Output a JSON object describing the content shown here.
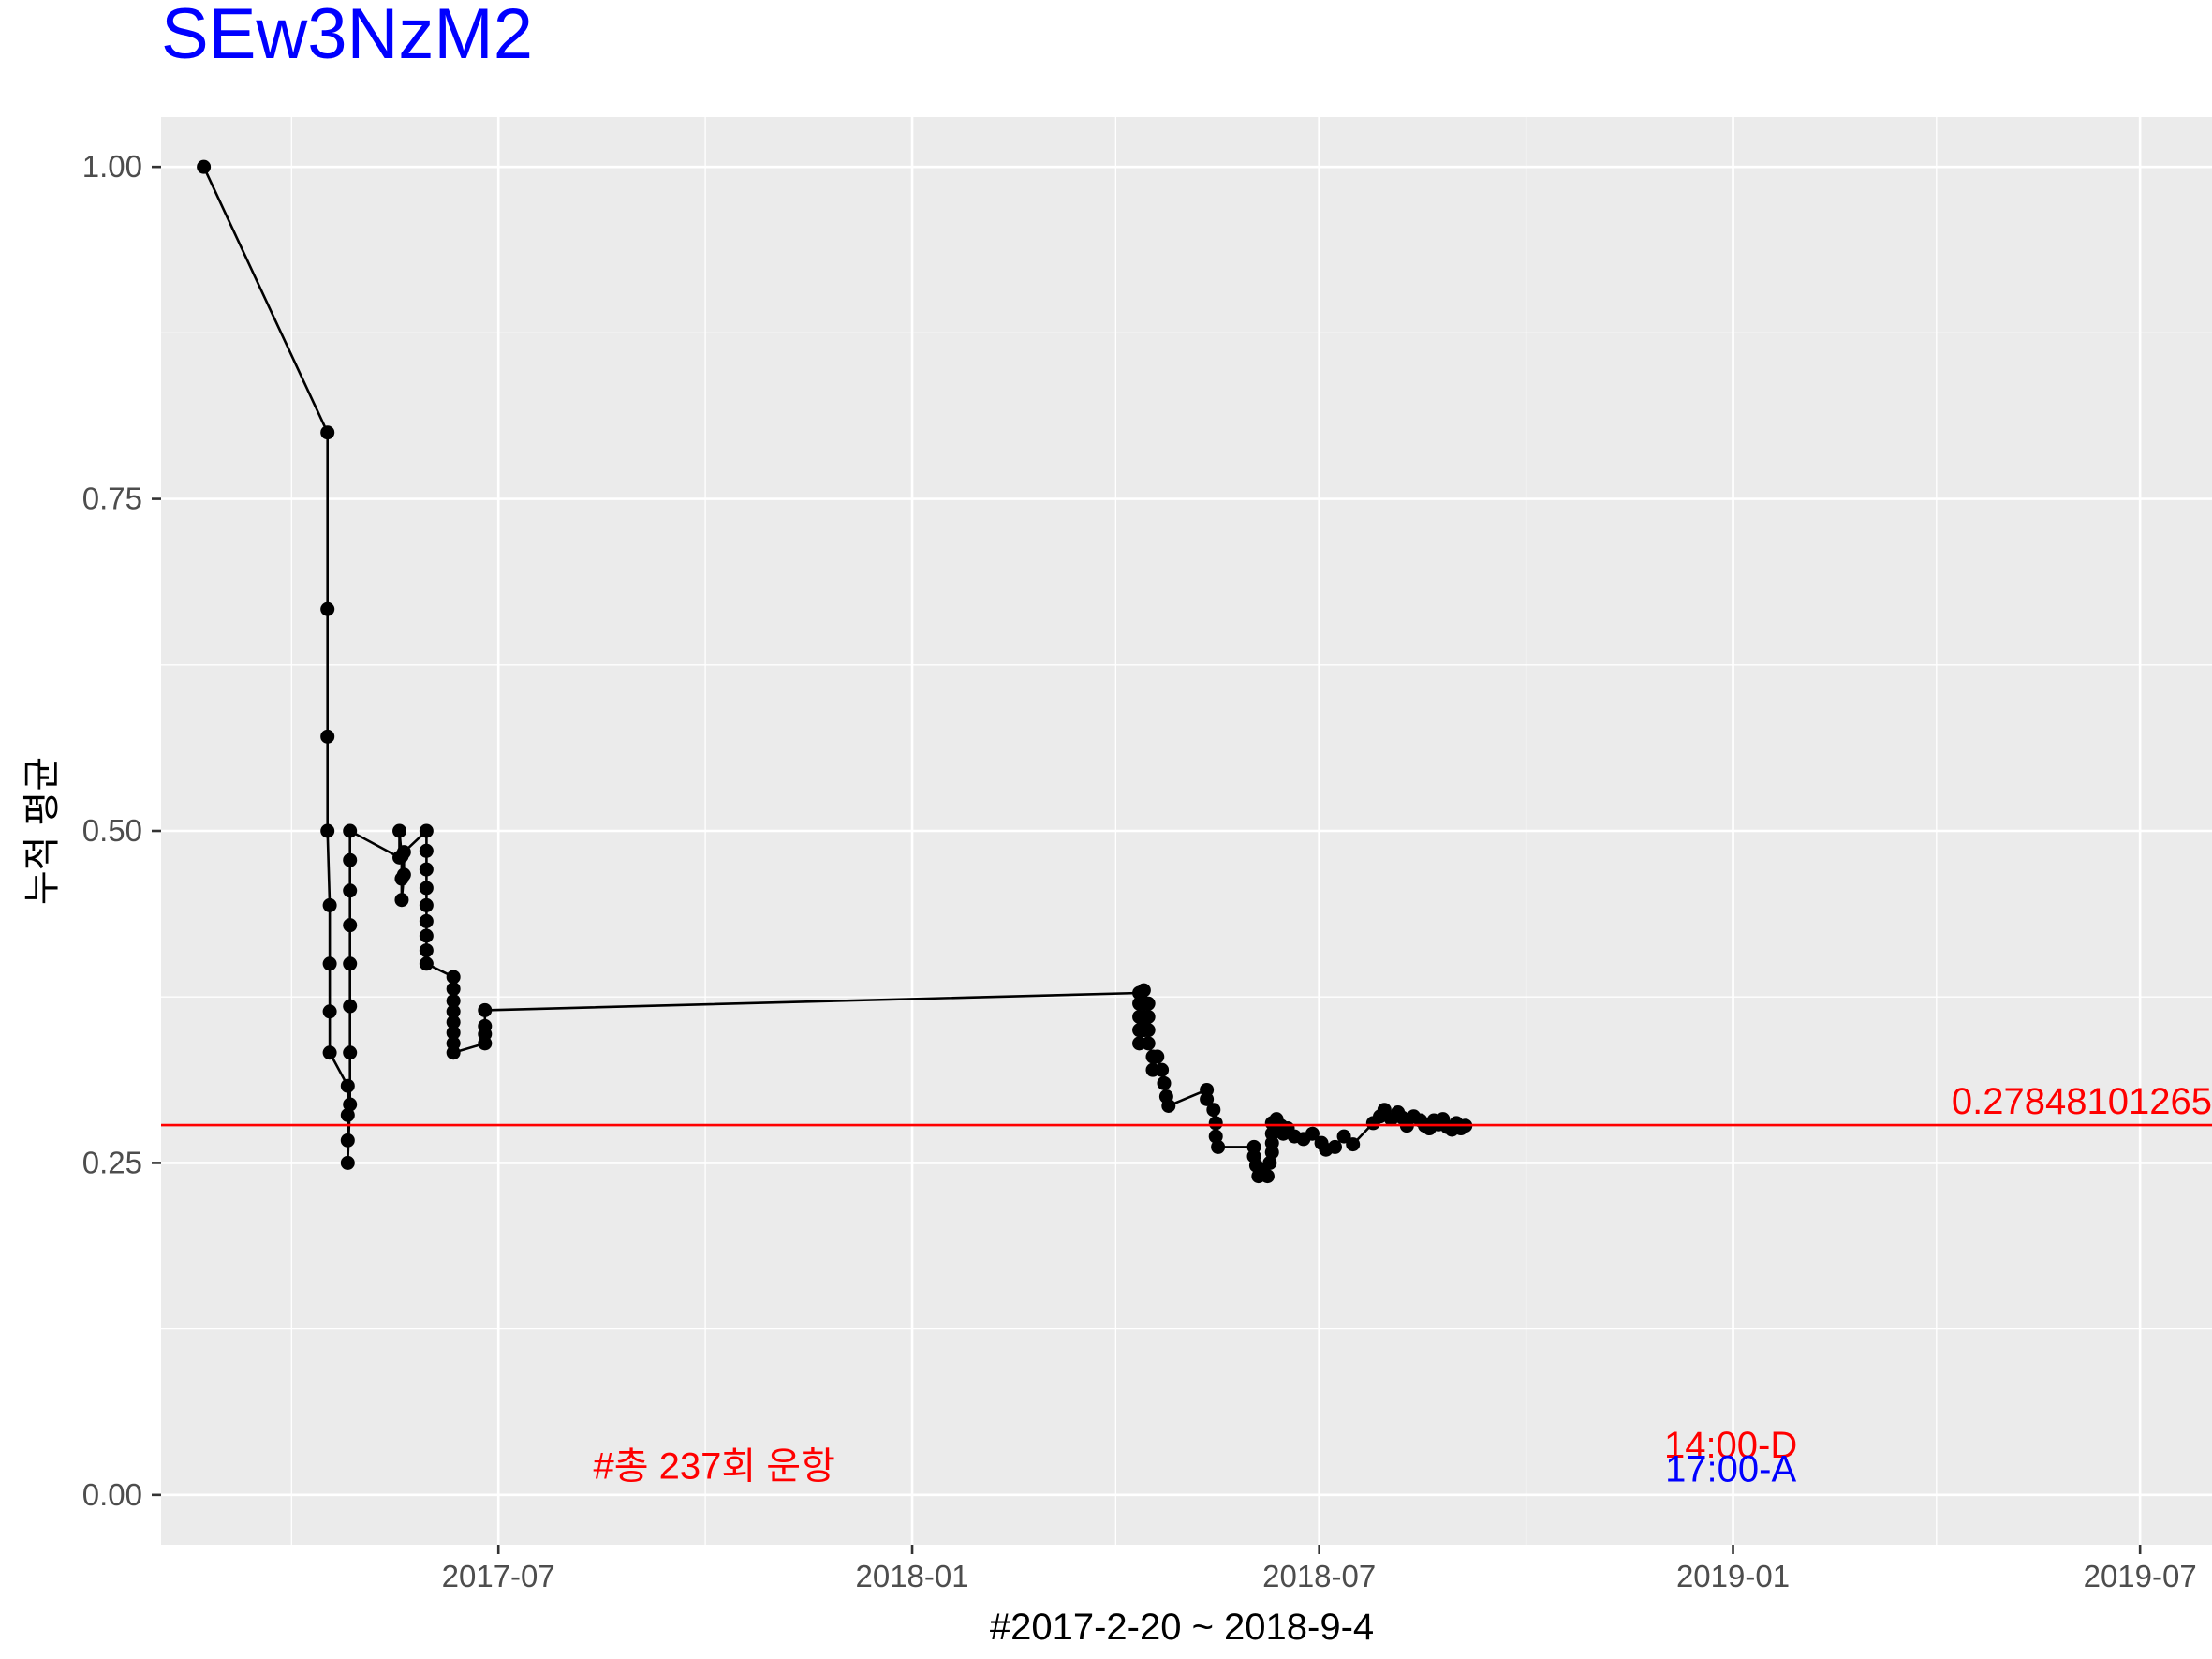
{
  "chart_data": {
    "type": "line",
    "title": "SEw3NzM2",
    "xlabel": "#2017-2-20 ~ 2018-9-4",
    "ylabel": "누적 평균",
    "xlim": [
      "2017-02-01",
      "2019-08-02"
    ],
    "ylim": [
      -0.0375,
      1.0375
    ],
    "grid": true,
    "x_ticks": [
      "2017-07-01",
      "2018-01-01",
      "2018-07-01",
      "2019-01-01",
      "2019-07-01"
    ],
    "x_tick_labels": [
      "2017-07",
      "2018-01",
      "2018-07",
      "2019-01",
      "2019-07"
    ],
    "y_ticks": [
      0,
      0.25,
      0.5,
      0.75,
      1
    ],
    "y_tick_labels": [
      "0.00",
      "0.25",
      "0.50",
      "0.75",
      "1.00"
    ],
    "hline": {
      "y": 0.2784810127,
      "label": "0.27848101265",
      "color": "#ff0000"
    },
    "series": [
      {
        "color": "#000000",
        "points": [
          [
            "2017-02-20",
            1.0
          ],
          [
            "2017-04-16",
            0.8
          ],
          [
            "2017-04-16",
            0.667
          ],
          [
            "2017-04-16",
            0.571
          ],
          [
            "2017-04-16",
            0.5
          ],
          [
            "2017-04-17",
            0.444
          ],
          [
            "2017-04-17",
            0.4
          ],
          [
            "2017-04-17",
            0.364
          ],
          [
            "2017-04-17",
            0.333
          ],
          [
            "2017-04-25",
            0.308
          ],
          [
            "2017-04-25",
            0.286
          ],
          [
            "2017-04-25",
            0.267
          ],
          [
            "2017-04-25",
            0.25
          ],
          [
            "2017-04-26",
            0.294
          ],
          [
            "2017-04-26",
            0.333
          ],
          [
            "2017-04-26",
            0.368
          ],
          [
            "2017-04-26",
            0.4
          ],
          [
            "2017-04-26",
            0.429
          ],
          [
            "2017-04-26",
            0.455
          ],
          [
            "2017-04-26",
            0.478
          ],
          [
            "2017-04-26",
            0.5
          ],
          [
            "2017-05-18",
            0.48
          ],
          [
            "2017-05-18",
            0.5
          ],
          [
            "2017-05-19",
            0.481
          ],
          [
            "2017-05-19",
            0.464
          ],
          [
            "2017-05-19",
            0.448
          ],
          [
            "2017-05-20",
            0.467
          ],
          [
            "2017-05-20",
            0.484
          ],
          [
            "2017-05-30",
            0.5
          ],
          [
            "2017-05-30",
            0.485
          ],
          [
            "2017-05-30",
            0.471
          ],
          [
            "2017-05-30",
            0.457
          ],
          [
            "2017-05-30",
            0.444
          ],
          [
            "2017-05-30",
            0.432
          ],
          [
            "2017-05-30",
            0.421
          ],
          [
            "2017-05-30",
            0.41
          ],
          [
            "2017-05-30",
            0.4
          ],
          [
            "2017-06-11",
            0.39
          ],
          [
            "2017-06-11",
            0.381
          ],
          [
            "2017-06-11",
            0.372
          ],
          [
            "2017-06-11",
            0.364
          ],
          [
            "2017-06-11",
            0.356
          ],
          [
            "2017-06-11",
            0.348
          ],
          [
            "2017-06-11",
            0.34
          ],
          [
            "2017-06-11",
            0.333
          ],
          [
            "2017-06-25",
            0.34
          ],
          [
            "2017-06-25",
            0.347
          ],
          [
            "2017-06-25",
            0.353
          ],
          [
            "2017-06-25",
            0.365
          ],
          [
            "2018-04-12",
            0.378
          ],
          [
            "2018-04-12",
            0.37
          ],
          [
            "2018-04-12",
            0.36
          ],
          [
            "2018-04-12",
            0.35
          ],
          [
            "2018-04-12",
            0.34
          ],
          [
            "2018-04-14",
            0.35
          ],
          [
            "2018-04-14",
            0.36
          ],
          [
            "2018-04-14",
            0.37
          ],
          [
            "2018-04-14",
            0.38
          ],
          [
            "2018-04-16",
            0.37
          ],
          [
            "2018-04-16",
            0.36
          ],
          [
            "2018-04-16",
            0.35
          ],
          [
            "2018-04-16",
            0.34
          ],
          [
            "2018-04-18",
            0.33
          ],
          [
            "2018-04-18",
            0.32
          ],
          [
            "2018-04-20",
            0.33
          ],
          [
            "2018-04-22",
            0.32
          ],
          [
            "2018-04-23",
            0.31
          ],
          [
            "2018-04-24",
            0.3
          ],
          [
            "2018-04-25",
            0.293
          ],
          [
            "2018-05-12",
            0.305
          ],
          [
            "2018-05-12",
            0.298
          ],
          [
            "2018-05-15",
            0.29
          ],
          [
            "2018-05-16",
            0.28
          ],
          [
            "2018-05-16",
            0.27
          ],
          [
            "2018-05-17",
            0.262
          ],
          [
            "2018-06-02",
            0.262
          ],
          [
            "2018-06-02",
            0.255
          ],
          [
            "2018-06-03",
            0.248
          ],
          [
            "2018-06-04",
            0.24
          ],
          [
            "2018-06-06",
            0.245
          ],
          [
            "2018-06-08",
            0.24
          ],
          [
            "2018-06-09",
            0.25
          ],
          [
            "2018-06-10",
            0.258
          ],
          [
            "2018-06-10",
            0.265
          ],
          [
            "2018-06-10",
            0.272
          ],
          [
            "2018-06-10",
            0.28
          ],
          [
            "2018-06-12",
            0.283
          ],
          [
            "2018-06-14",
            0.278
          ],
          [
            "2018-06-15",
            0.272
          ],
          [
            "2018-06-17",
            0.276
          ],
          [
            "2018-06-20",
            0.27
          ],
          [
            "2018-06-24",
            0.268
          ],
          [
            "2018-06-28",
            0.272
          ],
          [
            "2018-07-02",
            0.265
          ],
          [
            "2018-07-04",
            0.26
          ],
          [
            "2018-07-08",
            0.262
          ],
          [
            "2018-07-12",
            0.27
          ],
          [
            "2018-07-16",
            0.264
          ],
          [
            "2018-07-25",
            0.28
          ],
          [
            "2018-07-28",
            0.285
          ],
          [
            "2018-07-30",
            0.29
          ],
          [
            "2018-08-02",
            0.283
          ],
          [
            "2018-08-05",
            0.288
          ],
          [
            "2018-08-07",
            0.284
          ],
          [
            "2018-08-09",
            0.278
          ],
          [
            "2018-08-12",
            0.285
          ],
          [
            "2018-08-15",
            0.282
          ],
          [
            "2018-08-17",
            0.278
          ],
          [
            "2018-08-19",
            0.276
          ],
          [
            "2018-08-21",
            0.282
          ],
          [
            "2018-08-23",
            0.279
          ],
          [
            "2018-08-25",
            0.283
          ],
          [
            "2018-08-27",
            0.277
          ],
          [
            "2018-08-29",
            0.275
          ],
          [
            "2018-08-31",
            0.28
          ],
          [
            "2018-09-02",
            0.276
          ],
          [
            "2018-09-04",
            0.278
          ]
        ]
      }
    ],
    "annotations": [
      {
        "text": "#총 237회 운항",
        "x": "2017-10-05",
        "y": 0.022,
        "color": "#ff0000"
      },
      {
        "text": "14:00-D",
        "x": "2018-12-31",
        "y": 0.038,
        "color": "#ff0000"
      },
      {
        "text": "17:00-A",
        "x": "2018-12-31",
        "y": 0.02,
        "color": "#0000ff"
      }
    ]
  }
}
